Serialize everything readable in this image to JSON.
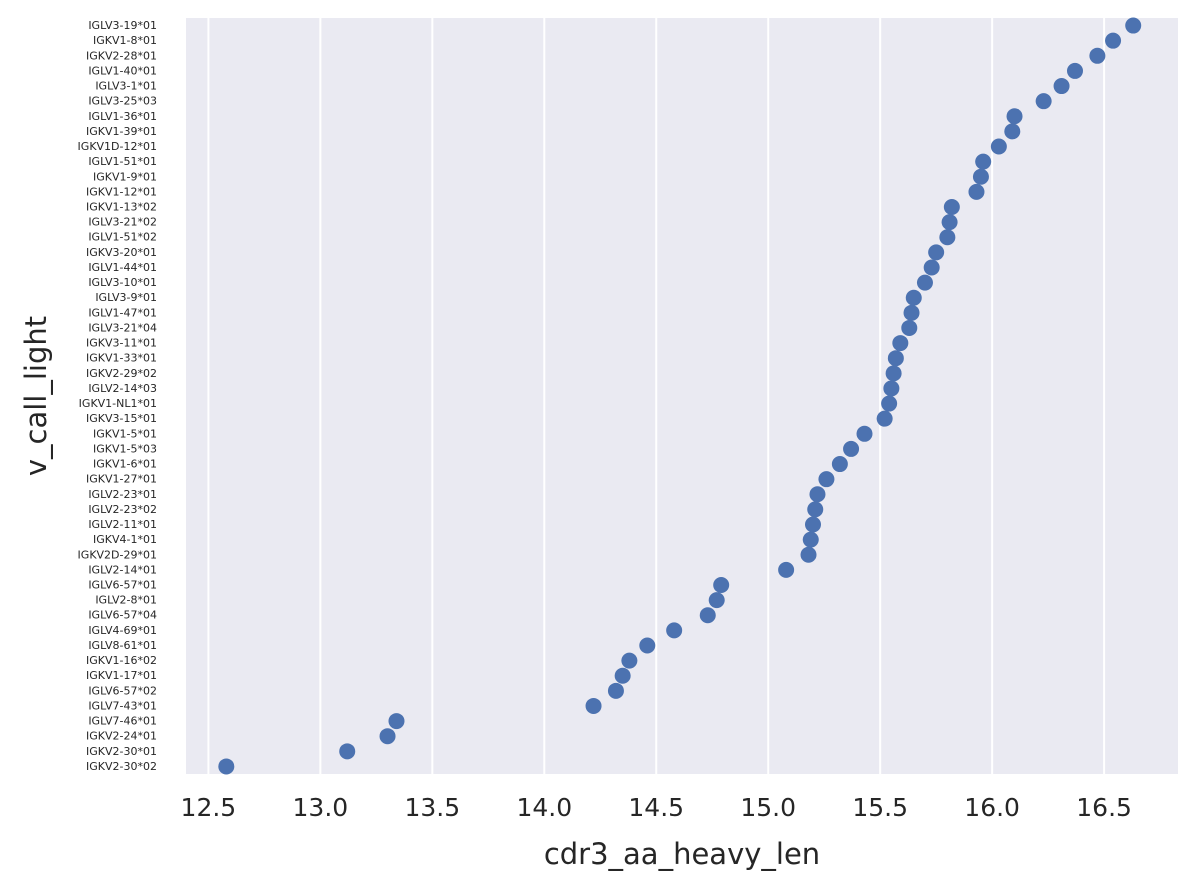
{
  "chart_data": {
    "type": "scatter",
    "title": "",
    "xlabel": "cdr3_aa_heavy_len",
    "ylabel": "v_call_light",
    "xlim": [
      12.4,
      16.83
    ],
    "xticks": [
      12.5,
      13.0,
      13.5,
      14.0,
      14.5,
      15.0,
      15.5,
      16.0,
      16.5
    ],
    "xtick_labels": [
      "12.5",
      "13.0",
      "13.5",
      "14.0",
      "14.5",
      "15.0",
      "15.5",
      "16.0",
      "16.5"
    ],
    "grid": true,
    "background": "#eaeaf2",
    "marker_color": "#4c72b0",
    "categories": [
      "IGLV3-19*01",
      "IGKV1-8*01",
      "IGKV2-28*01",
      "IGLV1-40*01",
      "IGLV3-1*01",
      "IGLV3-25*03",
      "IGLV1-36*01",
      "IGKV1-39*01",
      "IGKV1D-12*01",
      "IGLV1-51*01",
      "IGKV1-9*01",
      "IGKV1-12*01",
      "IGKV1-13*02",
      "IGLV3-21*02",
      "IGLV1-51*02",
      "IGKV3-20*01",
      "IGLV1-44*01",
      "IGLV3-10*01",
      "IGLV3-9*01",
      "IGLV1-47*01",
      "IGLV3-21*04",
      "IGKV3-11*01",
      "IGKV1-33*01",
      "IGKV2-29*02",
      "IGLV2-14*03",
      "IGKV1-NL1*01",
      "IGKV3-15*01",
      "IGKV1-5*01",
      "IGKV1-5*03",
      "IGKV1-6*01",
      "IGKV1-27*01",
      "IGLV2-23*01",
      "IGLV2-23*02",
      "IGLV2-11*01",
      "IGKV4-1*01",
      "IGKV2D-29*01",
      "IGLV2-14*01",
      "IGLV6-57*01",
      "IGLV2-8*01",
      "IGLV6-57*04",
      "IGLV4-69*01",
      "IGLV8-61*01",
      "IGKV1-16*02",
      "IGKV1-17*01",
      "IGLV6-57*02",
      "IGLV7-43*01",
      "IGLV7-46*01",
      "IGKV2-24*01",
      "IGKV2-30*01",
      "IGKV2-30*02"
    ],
    "values": [
      16.63,
      16.54,
      16.47,
      16.37,
      16.31,
      16.23,
      16.1,
      16.09,
      16.03,
      15.96,
      15.95,
      15.93,
      15.82,
      15.81,
      15.8,
      15.75,
      15.73,
      15.7,
      15.65,
      15.64,
      15.63,
      15.59,
      15.57,
      15.56,
      15.55,
      15.54,
      15.52,
      15.43,
      15.37,
      15.32,
      15.26,
      15.22,
      15.21,
      15.2,
      15.19,
      15.18,
      15.08,
      14.79,
      14.77,
      14.73,
      14.58,
      14.46,
      14.38,
      14.35,
      14.32,
      14.22,
      13.34,
      13.3,
      13.12,
      12.58
    ]
  }
}
